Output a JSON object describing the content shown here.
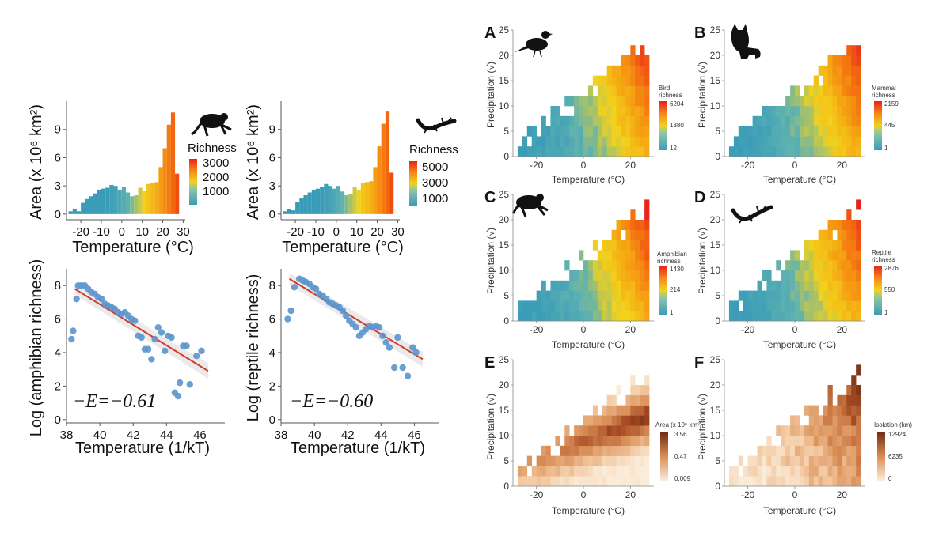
{
  "chart_data": [
    {
      "id": "amph-hist",
      "type": "bar",
      "xlabel": "Temperature (°C)",
      "ylabel": "Area (x 10⁶ km²)",
      "xlim": [
        -27,
        31
      ],
      "ylim": [
        -0.6,
        12
      ],
      "xticks": [
        -20,
        -10,
        0,
        10,
        20,
        30
      ],
      "yticks": [
        0,
        3,
        6,
        9
      ],
      "x": [
        -25,
        -23,
        -21,
        -19,
        -17,
        -15,
        -13,
        -11,
        -9,
        -7,
        -5,
        -3,
        -1,
        1,
        3,
        5,
        7,
        9,
        11,
        13,
        15,
        17,
        19,
        21,
        23,
        25,
        27
      ],
      "values": [
        0.3,
        0.5,
        0.3,
        1.2,
        1.6,
        1.9,
        2.2,
        2.6,
        2.7,
        2.8,
        3.1,
        3.0,
        2.6,
        2.9,
        2.3,
        1.9,
        2.0,
        2.8,
        2.5,
        3.2,
        3.3,
        3.4,
        5.0,
        7.0,
        9.5,
        10.8,
        4.3
      ],
      "legend": {
        "title": "Richness",
        "labels": [
          "3000",
          "2000",
          "1000"
        ],
        "max": 3500,
        "min": 0
      }
    },
    {
      "id": "rept-hist",
      "type": "bar",
      "xlabel": "Temperature (°C)",
      "ylabel": "Area (x 10⁶ km²)",
      "xlim": [
        -27,
        31
      ],
      "ylim": [
        -0.6,
        12
      ],
      "xticks": [
        -20,
        -10,
        0,
        10,
        20,
        30
      ],
      "yticks": [
        0,
        3,
        6,
        9
      ],
      "x": [
        -25,
        -23,
        -21,
        -19,
        -17,
        -15,
        -13,
        -11,
        -9,
        -7,
        -5,
        -3,
        -1,
        1,
        3,
        5,
        7,
        9,
        11,
        13,
        15,
        17,
        19,
        21,
        23,
        25,
        27
      ],
      "values": [
        0.3,
        0.5,
        0.4,
        1.3,
        1.7,
        2.0,
        2.3,
        2.6,
        2.7,
        2.9,
        3.2,
        3.0,
        2.7,
        3.0,
        2.4,
        2.0,
        2.1,
        2.9,
        2.6,
        3.3,
        3.4,
        3.5,
        5.0,
        7.2,
        9.6,
        10.9,
        4.4
      ],
      "legend": {
        "title": "Richness",
        "labels": [
          "5000",
          "3000",
          "1000"
        ],
        "max": 6000,
        "min": 0
      }
    },
    {
      "id": "amph-scatter",
      "type": "scatter",
      "xlabel": "Temperature (1/kT)",
      "ylabel": "Log (amphibian richness)",
      "xlim": [
        38,
        47.5
      ],
      "ylim": [
        -0.2,
        9
      ],
      "xticks": [
        38,
        40,
        42,
        44,
        46
      ],
      "yticks": [
        0,
        2,
        4,
        6,
        8
      ],
      "annotation": "−E=−0.61",
      "fit": {
        "x": [
          38.5,
          46.5
        ],
        "y": [
          7.8,
          2.9
        ]
      },
      "points": [
        [
          38.3,
          4.8
        ],
        [
          38.4,
          5.3
        ],
        [
          38.6,
          7.2
        ],
        [
          38.7,
          8.0
        ],
        [
          38.9,
          8.0
        ],
        [
          39.1,
          8.0
        ],
        [
          39.3,
          7.8
        ],
        [
          39.5,
          7.6
        ],
        [
          39.7,
          7.5
        ],
        [
          39.9,
          7.3
        ],
        [
          40.1,
          7.2
        ],
        [
          40.3,
          6.9
        ],
        [
          40.5,
          6.8
        ],
        [
          40.7,
          6.7
        ],
        [
          40.9,
          6.6
        ],
        [
          41.1,
          6.4
        ],
        [
          41.3,
          6.3
        ],
        [
          41.5,
          6.4
        ],
        [
          41.7,
          6.2
        ],
        [
          41.9,
          6.0
        ],
        [
          42.1,
          5.9
        ],
        [
          42.3,
          5.0
        ],
        [
          42.5,
          4.9
        ],
        [
          42.7,
          4.2
        ],
        [
          42.9,
          4.2
        ],
        [
          43.1,
          3.6
        ],
        [
          43.3,
          4.8
        ],
        [
          43.5,
          5.5
        ],
        [
          43.7,
          5.2
        ],
        [
          43.9,
          4.1
        ],
        [
          44.1,
          5.0
        ],
        [
          44.3,
          4.9
        ],
        [
          44.5,
          1.6
        ],
        [
          44.7,
          1.4
        ],
        [
          44.8,
          2.2
        ],
        [
          45.0,
          4.4
        ],
        [
          45.2,
          4.4
        ],
        [
          45.4,
          2.1
        ],
        [
          45.8,
          3.8
        ],
        [
          46.1,
          4.1
        ]
      ]
    },
    {
      "id": "rept-scatter",
      "type": "scatter",
      "xlabel": "Temperature (1/kT)",
      "ylabel": "Log (reptile richness)",
      "xlim": [
        38,
        47.5
      ],
      "ylim": [
        -0.2,
        9
      ],
      "xticks": [
        38,
        40,
        42,
        44,
        46
      ],
      "yticks": [
        0,
        2,
        4,
        6,
        8
      ],
      "annotation": "−E=−0.60",
      "fit": {
        "x": [
          38.5,
          46.5
        ],
        "y": [
          8.4,
          3.6
        ]
      },
      "points": [
        [
          38.4,
          6.0
        ],
        [
          38.6,
          6.5
        ],
        [
          38.8,
          7.9
        ],
        [
          39.1,
          8.4
        ],
        [
          39.3,
          8.3
        ],
        [
          39.5,
          8.2
        ],
        [
          39.7,
          8.1
        ],
        [
          39.9,
          7.9
        ],
        [
          40.1,
          7.8
        ],
        [
          40.3,
          7.5
        ],
        [
          40.5,
          7.4
        ],
        [
          40.7,
          7.2
        ],
        [
          40.9,
          7.0
        ],
        [
          41.1,
          6.9
        ],
        [
          41.3,
          6.8
        ],
        [
          41.5,
          6.7
        ],
        [
          41.7,
          6.5
        ],
        [
          41.9,
          6.2
        ],
        [
          42.1,
          5.9
        ],
        [
          42.3,
          5.7
        ],
        [
          42.5,
          5.5
        ],
        [
          42.7,
          5.0
        ],
        [
          42.9,
          5.2
        ],
        [
          43.1,
          5.4
        ],
        [
          43.3,
          5.6
        ],
        [
          43.5,
          5.5
        ],
        [
          43.7,
          5.6
        ],
        [
          43.9,
          5.5
        ],
        [
          44.1,
          5.0
        ],
        [
          44.3,
          4.6
        ],
        [
          44.5,
          4.3
        ],
        [
          44.8,
          3.1
        ],
        [
          45.0,
          4.9
        ],
        [
          45.3,
          3.1
        ],
        [
          45.6,
          2.6
        ],
        [
          45.9,
          4.3
        ],
        [
          46.1,
          4.0
        ]
      ]
    },
    {
      "id": "A",
      "type": "heatmap",
      "label": "A",
      "xlabel": "Temperature (°C)",
      "ylabel": "Precipitation (√)",
      "xlim": [
        -30,
        30
      ],
      "ylim": [
        0,
        25
      ],
      "xticks": [
        -20,
        0,
        20
      ],
      "yticks": [
        0,
        5,
        10,
        15,
        20,
        25
      ],
      "palette": "richness",
      "legend": {
        "title": [
          "Bird",
          "richness"
        ],
        "labels": [
          "6204",
          "1380",
          "12"
        ]
      }
    },
    {
      "id": "B",
      "type": "heatmap",
      "label": "B",
      "xlabel": "Temperature (°C)",
      "ylabel": "Precipitation (√)",
      "xlim": [
        -30,
        30
      ],
      "ylim": [
        0,
        25
      ],
      "xticks": [
        -20,
        0,
        20
      ],
      "yticks": [
        0,
        5,
        10,
        15,
        20,
        25
      ],
      "palette": "richness",
      "legend": {
        "title": [
          "Mammal",
          "richness"
        ],
        "labels": [
          "2159",
          "445",
          "1"
        ]
      }
    },
    {
      "id": "C",
      "type": "heatmap",
      "label": "C",
      "xlabel": "Temperature (°C)",
      "ylabel": "Precipitation (√)",
      "xlim": [
        -30,
        30
      ],
      "ylim": [
        0,
        25
      ],
      "xticks": [
        -20,
        0,
        20
      ],
      "yticks": [
        0,
        5,
        10,
        15,
        20,
        25
      ],
      "palette": "richness",
      "legend": {
        "title": [
          "Amphibian",
          "richness"
        ],
        "labels": [
          "1430",
          "214",
          "1"
        ]
      }
    },
    {
      "id": "D",
      "type": "heatmap",
      "label": "D",
      "xlabel": "Temperature (°C)",
      "ylabel": "Precipitation (√)",
      "xlim": [
        -30,
        30
      ],
      "ylim": [
        0,
        25
      ],
      "xticks": [
        -20,
        0,
        20
      ],
      "yticks": [
        0,
        5,
        10,
        15,
        20,
        25
      ],
      "palette": "richness",
      "legend": {
        "title": [
          "Reptile",
          "richness"
        ],
        "labels": [
          "2876",
          "550",
          "1"
        ]
      }
    },
    {
      "id": "E",
      "type": "heatmap",
      "label": "E",
      "xlabel": "Temperature (°C)",
      "ylabel": "Precipitation (√)",
      "xlim": [
        -30,
        30
      ],
      "ylim": [
        0,
        25
      ],
      "xticks": [
        -20,
        0,
        20
      ],
      "yticks": [
        0,
        5,
        10,
        15,
        20,
        25
      ],
      "palette": "area",
      "legend": {
        "title": [
          "Area (x 10⁶ km²)"
        ],
        "labels": [
          "3.56",
          "0.47",
          "0.009"
        ]
      }
    },
    {
      "id": "F",
      "type": "heatmap",
      "label": "F",
      "xlabel": "Temperature (°C)",
      "ylabel": "Precipitation (√)",
      "xlim": [
        -30,
        30
      ],
      "ylim": [
        0,
        25
      ],
      "xticks": [
        -20,
        0,
        20
      ],
      "yticks": [
        0,
        5,
        10,
        15,
        20,
        25
      ],
      "palette": "isolation",
      "legend": {
        "title": [
          "Isolation (km)"
        ],
        "labels": [
          "12924",
          "6235",
          "0"
        ]
      }
    }
  ],
  "colors": {
    "richness": [
      "#3a9cb8",
      "#5fb2b0",
      "#f2d21c",
      "#f5a612",
      "#f46a10",
      "#e8201a"
    ],
    "area": [
      "#fbecd9",
      "#f1c49a",
      "#d98d55",
      "#a54a24",
      "#6e2a12"
    ],
    "isolation": [
      "#fbecd9",
      "#f1c49a",
      "#d98d55",
      "#a54a24",
      "#6e2a12"
    ],
    "fit_line": "#d33a2c",
    "points": "#5b95cc"
  }
}
